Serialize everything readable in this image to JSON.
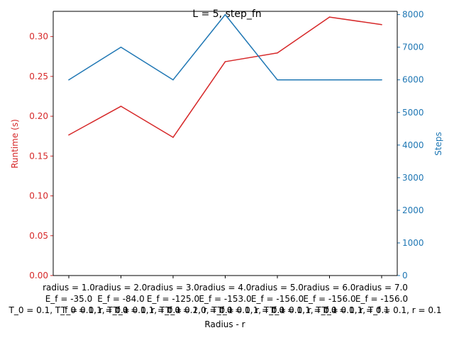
{
  "chart_data": {
    "type": "line",
    "title": "L = 5, step_fn",
    "xlabel": "Radius - r",
    "ylabel_left": "Runtime (s)",
    "ylabel_right": "Steps",
    "categories": [
      [
        "radius = 1.0",
        "E_f = -35.0",
        "T_0 = 0.1, T_f = 0.1, r = 0.1"
      ],
      [
        "radius = 2.0",
        "E_f = -84.0",
        "T_0 = 0.1, T_f = 0.1, r = 0.1"
      ],
      [
        "radius = 3.0",
        "E_f = -125.0",
        "T_0 = 0.1, T_f = 0.1, r = 0.1"
      ],
      [
        "radius = 4.0",
        "E_f = -153.0",
        "T_0 = 2.0, T_f = 0.1, r = 0.1"
      ],
      [
        "radius = 5.0",
        "E_f = -156.0",
        "T_0 = 0.1, T_f = 0.1, r = 0.1"
      ],
      [
        "radius = 6.0",
        "E_f = -156.0",
        "T_0 = 0.1, T_f = 0.1, r = 0.1"
      ],
      [
        "radius = 7.0",
        "E_f = -156.0",
        "T_0 = 0.1, T_f = 0.1, r = 0.1"
      ]
    ],
    "series": [
      {
        "axis": "left",
        "color": "#d62728",
        "values": [
          0.1765,
          0.2125,
          0.1735,
          0.2685,
          0.2795,
          0.3245,
          0.315
        ]
      },
      {
        "axis": "right",
        "color": "#1f77b4",
        "values": [
          6000,
          7000,
          6000,
          8000,
          6000,
          6000,
          6000
        ]
      }
    ],
    "ylim_left": [
      0,
      0.3317
    ],
    "ylim_right": [
      0,
      8100
    ],
    "yticks_left": [
      "0.00",
      "0.05",
      "0.10",
      "0.15",
      "0.20",
      "0.25",
      "0.30"
    ],
    "yticks_right": [
      "0",
      "1000",
      "2000",
      "3000",
      "4000",
      "5000",
      "6000",
      "7000",
      "8000"
    ],
    "grid": false,
    "legend": "none"
  }
}
